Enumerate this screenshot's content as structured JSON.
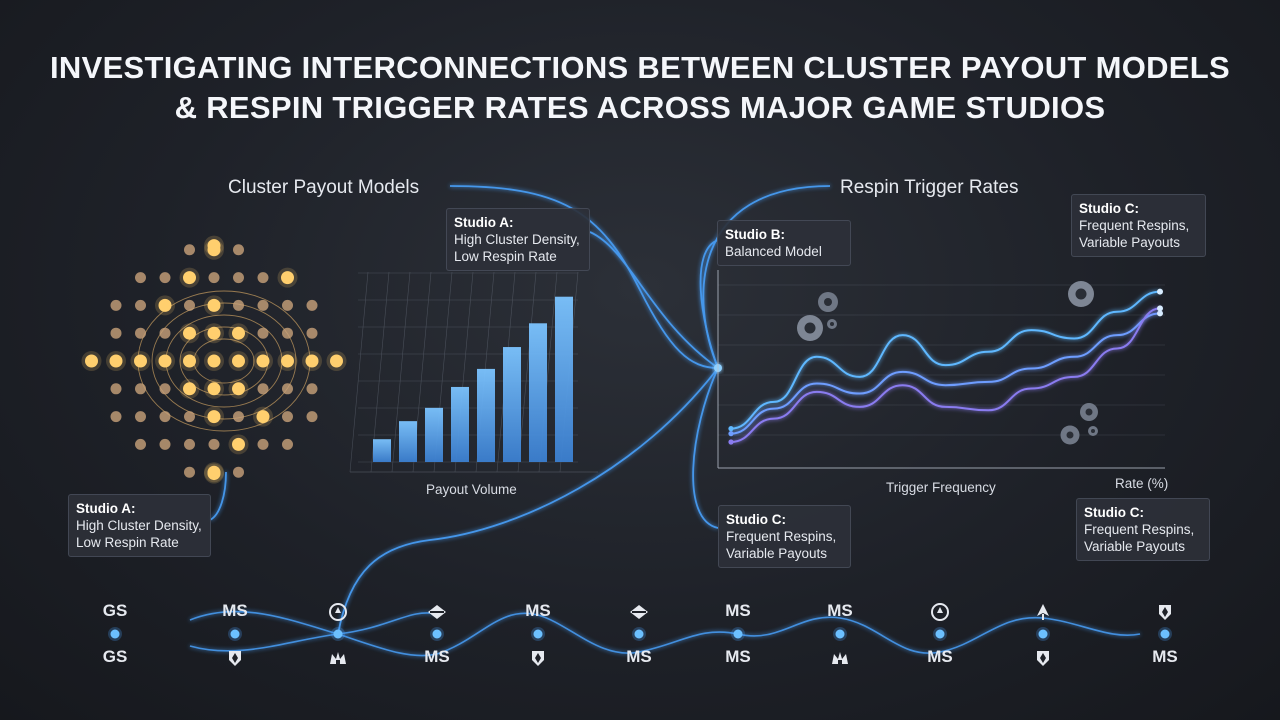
{
  "title": "INVESTIGATING INTERCONNECTIONS BETWEEN CLUSTER PAYOUT MODELS & RESPIN TRIGGER RATES ACROSS MAJOR GAME STUDIOS",
  "left_section": {
    "title": "Cluster Payout Models",
    "callout_top": {
      "title": "Studio A:",
      "lines": [
        "High Cluster Density,",
        "Low Respin Rate"
      ]
    },
    "callout_bottom": {
      "title": "Studio A:",
      "lines": [
        "High Cluster Density,",
        "Low Respin Rate"
      ]
    },
    "bar_xlabel": "Payout Volume"
  },
  "right_section": {
    "title": "Respin Trigger Rates",
    "callout_studio_b": {
      "title": "Studio B:",
      "lines": [
        "Balanced Model"
      ]
    },
    "callout_studio_c_top": {
      "title": "Studio C:",
      "lines": [
        "Frequent Respins,",
        "Variable Payouts"
      ]
    },
    "callout_studio_c_mid": {
      "title": "Studio C:",
      "lines": [
        "Frequent Respins,",
        "Variable Payouts"
      ]
    },
    "callout_studio_c_bottom": {
      "title": "Studio C:",
      "lines": [
        "Frequent Respins,",
        "Variable Payouts"
      ]
    },
    "line_xlabel": "Trigger Frequency",
    "line_ylabel": "Rate (%)"
  },
  "timeline": {
    "top": [
      {
        "type": "text",
        "text": "GS"
      },
      {
        "type": "text",
        "text": "MS"
      },
      {
        "type": "icon",
        "icon": "target-icon"
      },
      {
        "type": "icon",
        "icon": "diamond-icon"
      },
      {
        "type": "text",
        "text": "MS"
      },
      {
        "type": "icon",
        "icon": "diamond-icon"
      },
      {
        "type": "text",
        "text": "MS"
      },
      {
        "type": "text",
        "text": "MS"
      },
      {
        "type": "icon",
        "icon": "target-icon"
      },
      {
        "type": "icon",
        "icon": "spade-icon"
      },
      {
        "type": "icon",
        "icon": "shield-icon"
      }
    ],
    "bottom": [
      {
        "type": "text",
        "text": "GS"
      },
      {
        "type": "icon",
        "icon": "shield-icon"
      },
      {
        "type": "icon",
        "icon": "crown-icon"
      },
      {
        "type": "text",
        "text": "MS"
      },
      {
        "type": "icon",
        "icon": "shield-icon"
      },
      {
        "type": "text",
        "text": "MS"
      },
      {
        "type": "text",
        "text": "MS"
      },
      {
        "type": "icon",
        "icon": "crown-icon"
      },
      {
        "type": "text",
        "text": "MS"
      },
      {
        "type": "icon",
        "icon": "shield-icon"
      },
      {
        "type": "text",
        "text": "MS"
      }
    ]
  },
  "colors": {
    "background": "#1e2128",
    "node_glow": "#ffcf6e",
    "node_dim": "#c9a27a",
    "bar": "#5aa8f0",
    "wire": "#4aa3ff",
    "line_blue": "#5fb8ff",
    "line_violet": "#8a7cf0"
  },
  "chart_data": [
    {
      "type": "bar",
      "title": "",
      "xlabel": "Payout Volume",
      "ylabel": "",
      "categories": [
        "1",
        "2",
        "3",
        "4",
        "5",
        "6",
        "7",
        "8"
      ],
      "values": [
        24,
        43,
        57,
        79,
        98,
        121,
        146,
        174
      ],
      "ylim": [
        0,
        200
      ],
      "grid": true
    },
    {
      "type": "line",
      "title": "",
      "xlabel": "Trigger Frequency",
      "ylabel": "Rate (%)",
      "x": [
        0,
        1,
        2,
        3,
        4,
        5,
        6,
        7,
        8,
        9,
        10
      ],
      "ylim": [
        0,
        100
      ],
      "grid": true,
      "series": [
        {
          "values": [
            14,
            30,
            57,
            45,
            70,
            52,
            60,
            73,
            68,
            84,
            96
          ]
        },
        {
          "values": [
            11,
            26,
            41,
            35,
            48,
            40,
            42,
            50,
            57,
            70,
            83
          ]
        },
        {
          "values": [
            6,
            20,
            36,
            27,
            40,
            27,
            25,
            38,
            45,
            62,
            86
          ]
        }
      ]
    }
  ]
}
